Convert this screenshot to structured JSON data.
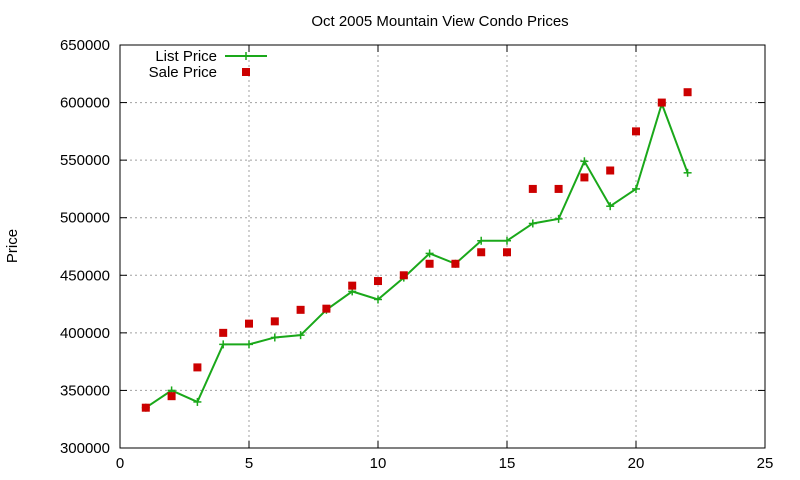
{
  "chart_data": {
    "type": "line",
    "title": "Oct 2005 Mountain View Condo Prices",
    "xlabel": "",
    "ylabel": "Price",
    "xlim": [
      0,
      25
    ],
    "ylim": [
      300000,
      650000
    ],
    "xticks": [
      0,
      5,
      10,
      15,
      20,
      25
    ],
    "yticks": [
      300000,
      350000,
      400000,
      450000,
      500000,
      550000,
      600000,
      650000
    ],
    "grid": true,
    "legend_position": "top-left",
    "x": [
      1,
      2,
      3,
      4,
      5,
      6,
      7,
      8,
      9,
      10,
      11,
      12,
      13,
      14,
      15,
      16,
      17,
      18,
      19,
      20,
      21,
      22
    ],
    "series": [
      {
        "name": "List Price",
        "style": "linespoints",
        "marker": "plus",
        "color": "#1aa81a",
        "values": [
          335000,
          350000,
          340000,
          390000,
          390000,
          396000,
          398000,
          420000,
          436000,
          429000,
          448000,
          469000,
          460000,
          480000,
          480000,
          495000,
          499000,
          549000,
          510000,
          525000,
          599000,
          539000
        ]
      },
      {
        "name": "Sale Price",
        "style": "points",
        "marker": "square",
        "color": "#cc0000",
        "values": [
          335000,
          345000,
          370000,
          400000,
          408000,
          410000,
          420000,
          421000,
          441000,
          445000,
          450000,
          460000,
          460000,
          470000,
          470000,
          525000,
          525000,
          535000,
          541000,
          575000,
          600000,
          609000
        ]
      }
    ]
  }
}
